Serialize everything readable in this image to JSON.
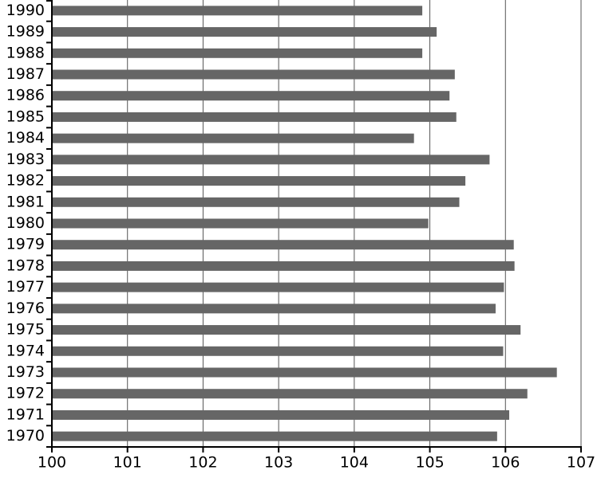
{
  "chart_data": {
    "type": "bar",
    "orientation": "horizontal",
    "categories": [
      "1970",
      "1971",
      "1972",
      "1973",
      "1974",
      "1975",
      "1976",
      "1977",
      "1978",
      "1979",
      "1980",
      "1981",
      "1982",
      "1983",
      "1984",
      "1985",
      "1986",
      "1987",
      "1988",
      "1989",
      "1990"
    ],
    "values": [
      105.89,
      106.05,
      106.29,
      106.68,
      105.97,
      106.2,
      105.87,
      105.98,
      106.12,
      106.11,
      104.98,
      105.39,
      105.47,
      105.79,
      104.79,
      105.35,
      105.26,
      105.33,
      104.9,
      105.09,
      104.9
    ],
    "color": "#666666",
    "xlim": [
      100,
      107
    ],
    "xticks": [
      100,
      101,
      102,
      103,
      104,
      105,
      106,
      107
    ],
    "grid": true
  }
}
